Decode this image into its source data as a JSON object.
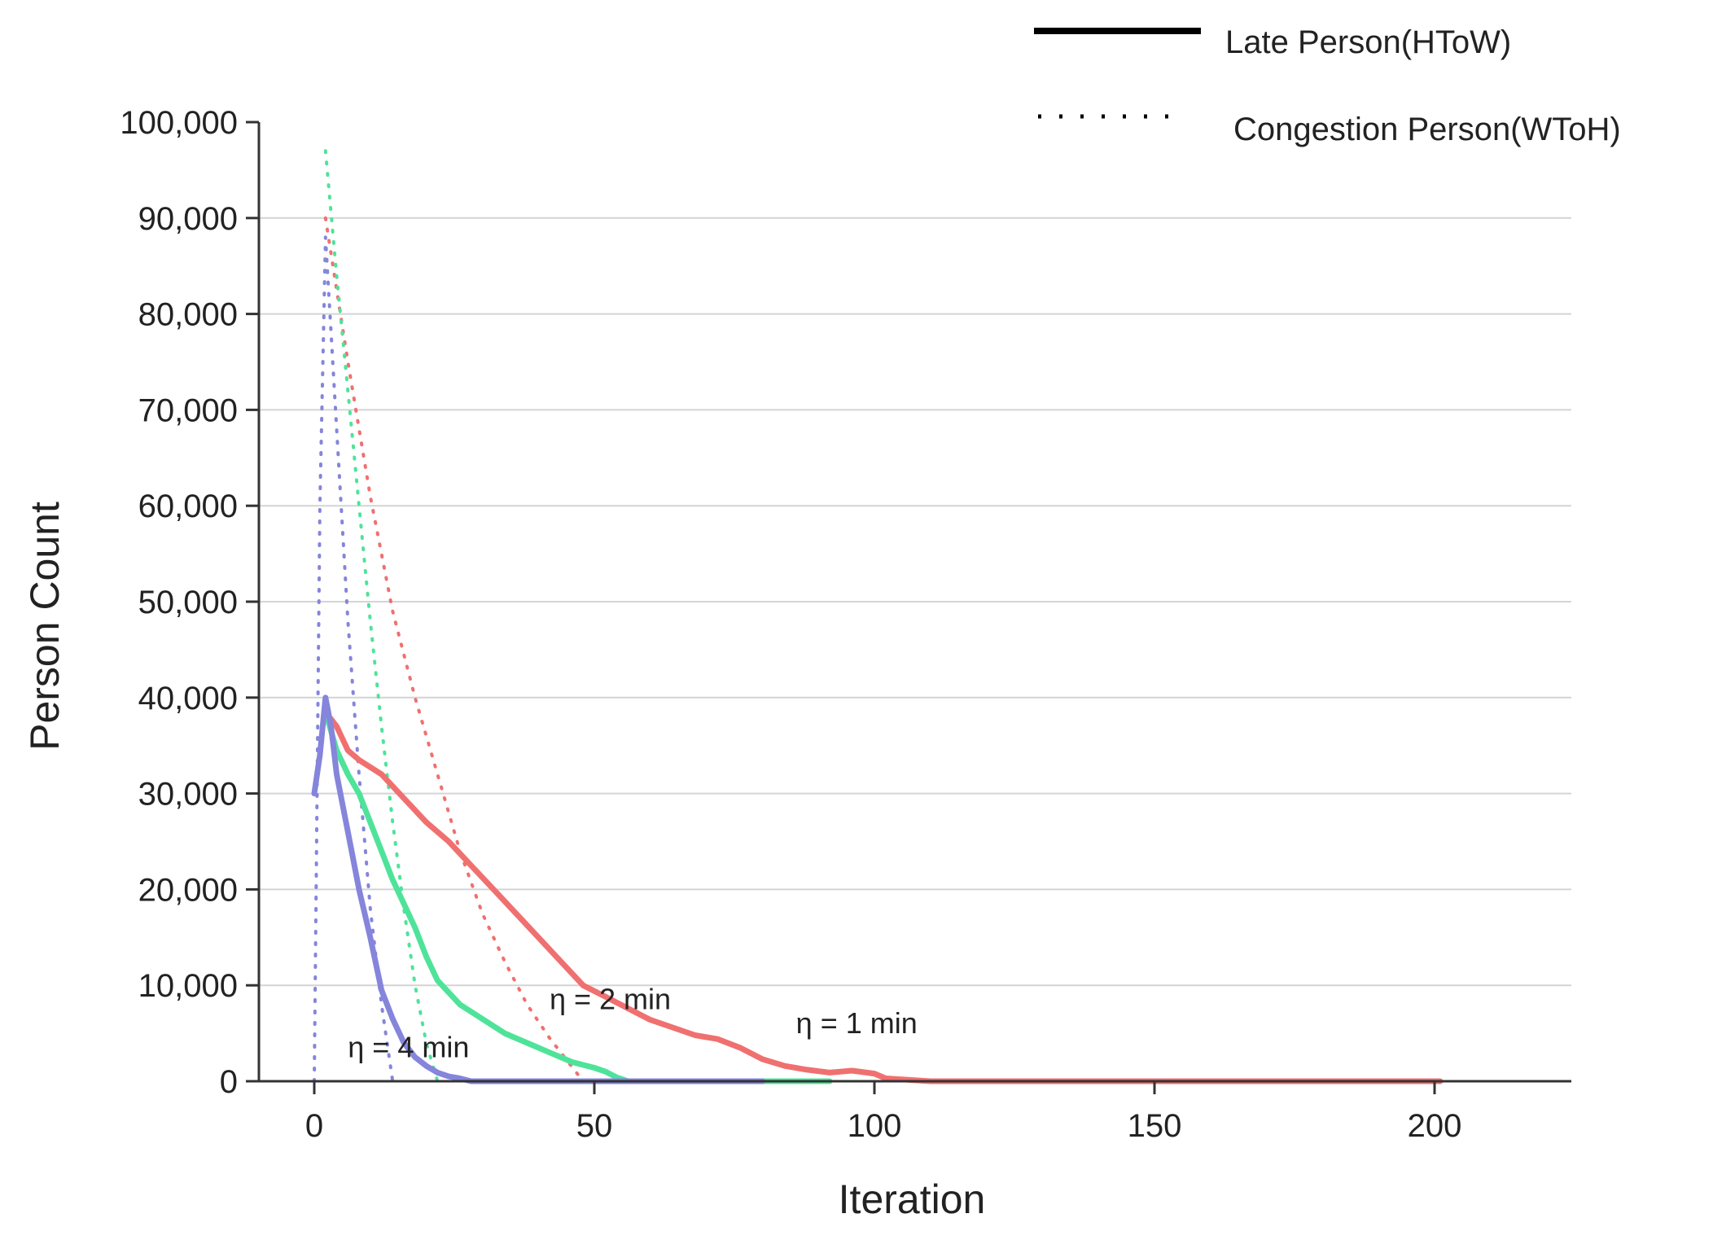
{
  "chart_data": {
    "type": "line",
    "title": "",
    "xlabel": "Iteration",
    "ylabel": "Person Count",
    "xlim": [
      -10,
      225
    ],
    "ylim": [
      0,
      100000
    ],
    "x_ticks": [
      0,
      50,
      100,
      150,
      200
    ],
    "x_tick_labels": [
      "0",
      "50",
      "100",
      "150",
      "200"
    ],
    "y_ticks": [
      0,
      10000,
      20000,
      30000,
      40000,
      50000,
      60000,
      70000,
      80000,
      90000,
      100000
    ],
    "y_tick_labels": [
      "0",
      "10,000",
      "20,000",
      "30,000",
      "40,000",
      "50,000",
      "60,000",
      "70,000",
      "80,000",
      "90,000",
      "100,000"
    ],
    "grid": "horizontal",
    "legend": {
      "placement": "top-right",
      "entries": [
        {
          "label": "Late Person(HToW)",
          "style": "solid",
          "color": "#000000"
        },
        {
          "label": "Congestion Person(WToH)",
          "style": "dotted",
          "color": "#000000"
        }
      ]
    },
    "colors": {
      "eta_1": "#f07070",
      "eta_2": "#4fe39a",
      "eta_4": "#8585dc"
    },
    "series": [
      {
        "label": "η = 1 min",
        "kind": "late",
        "style": "solid",
        "color": "#f07070",
        "points": [
          [
            2,
            38500
          ],
          [
            4,
            37000
          ],
          [
            6,
            34500
          ],
          [
            8,
            33500
          ],
          [
            12,
            32000
          ],
          [
            16,
            29500
          ],
          [
            20,
            27000
          ],
          [
            24,
            25000
          ],
          [
            28,
            22500
          ],
          [
            32,
            20000
          ],
          [
            36,
            17500
          ],
          [
            40,
            15000
          ],
          [
            44,
            12500
          ],
          [
            48,
            10000
          ],
          [
            52,
            8800
          ],
          [
            56,
            7600
          ],
          [
            60,
            6400
          ],
          [
            64,
            5600
          ],
          [
            68,
            4800
          ],
          [
            72,
            4400
          ],
          [
            76,
            3500
          ],
          [
            80,
            2300
          ],
          [
            84,
            1600
          ],
          [
            88,
            1200
          ],
          [
            92,
            900
          ],
          [
            96,
            1100
          ],
          [
            100,
            800
          ],
          [
            102,
            300
          ],
          [
            106,
            150
          ],
          [
            110,
            0
          ],
          [
            201,
            0
          ]
        ]
      },
      {
        "label": "η = 2 min",
        "kind": "late",
        "style": "solid",
        "color": "#4fe39a",
        "points": [
          [
            2,
            38500
          ],
          [
            4,
            34500
          ],
          [
            6,
            32000
          ],
          [
            8,
            30000
          ],
          [
            10,
            27000
          ],
          [
            12,
            24000
          ],
          [
            14,
            21000
          ],
          [
            16,
            18500
          ],
          [
            18,
            16000
          ],
          [
            20,
            13000
          ],
          [
            22,
            10500
          ],
          [
            26,
            8000
          ],
          [
            30,
            6500
          ],
          [
            34,
            5000
          ],
          [
            38,
            4000
          ],
          [
            42,
            3000
          ],
          [
            46,
            2000
          ],
          [
            50,
            1400
          ],
          [
            52,
            1000
          ],
          [
            54,
            400
          ],
          [
            56,
            0
          ],
          [
            92,
            0
          ]
        ]
      },
      {
        "label": "η = 4 min",
        "kind": "late",
        "style": "solid",
        "color": "#8585dc",
        "points": [
          [
            0,
            30000
          ],
          [
            1,
            34000
          ],
          [
            2,
            40000
          ],
          [
            3,
            37000
          ],
          [
            4,
            32000
          ],
          [
            6,
            26000
          ],
          [
            8,
            20000
          ],
          [
            10,
            15000
          ],
          [
            12,
            9500
          ],
          [
            14,
            6500
          ],
          [
            16,
            4000
          ],
          [
            18,
            2500
          ],
          [
            20,
            1600
          ],
          [
            22,
            900
          ],
          [
            24,
            500
          ],
          [
            26,
            300
          ],
          [
            28,
            0
          ],
          [
            80,
            0
          ]
        ]
      },
      {
        "label": "η = 1 min",
        "kind": "congestion",
        "style": "dotted",
        "color": "#f07070",
        "points": [
          [
            2,
            90000
          ],
          [
            6,
            75000
          ],
          [
            10,
            61000
          ],
          [
            14,
            49000
          ],
          [
            18,
            40000
          ],
          [
            22,
            32000
          ],
          [
            26,
            24000
          ],
          [
            30,
            17500
          ],
          [
            34,
            12500
          ],
          [
            38,
            8000
          ],
          [
            42,
            4500
          ],
          [
            46,
            1500
          ],
          [
            48,
            0
          ]
        ]
      },
      {
        "label": "η = 2 min",
        "kind": "congestion",
        "style": "dotted",
        "color": "#4fe39a",
        "points": [
          [
            2,
            97000
          ],
          [
            4,
            84000
          ],
          [
            6,
            72000
          ],
          [
            8,
            60000
          ],
          [
            10,
            48000
          ],
          [
            12,
            37000
          ],
          [
            14,
            27000
          ],
          [
            16,
            18000
          ],
          [
            18,
            10000
          ],
          [
            20,
            4000
          ],
          [
            22,
            0
          ]
        ]
      },
      {
        "label": "η = 4 min",
        "kind": "congestion",
        "style": "dotted",
        "color": "#8585dc",
        "points": [
          [
            0,
            0
          ],
          [
            1,
            60000
          ],
          [
            2,
            88000
          ],
          [
            4,
            68000
          ],
          [
            6,
            48000
          ],
          [
            8,
            32000
          ],
          [
            10,
            18000
          ],
          [
            12,
            8000
          ],
          [
            14,
            0
          ]
        ]
      }
    ],
    "annotations": [
      {
        "text": "η = 1 min",
        "x": 86,
        "y": 5000
      },
      {
        "text": "η = 2 min",
        "x": 42,
        "y": 7500
      },
      {
        "text": "η = 4 min",
        "x": 6,
        "y": 2500
      }
    ]
  }
}
